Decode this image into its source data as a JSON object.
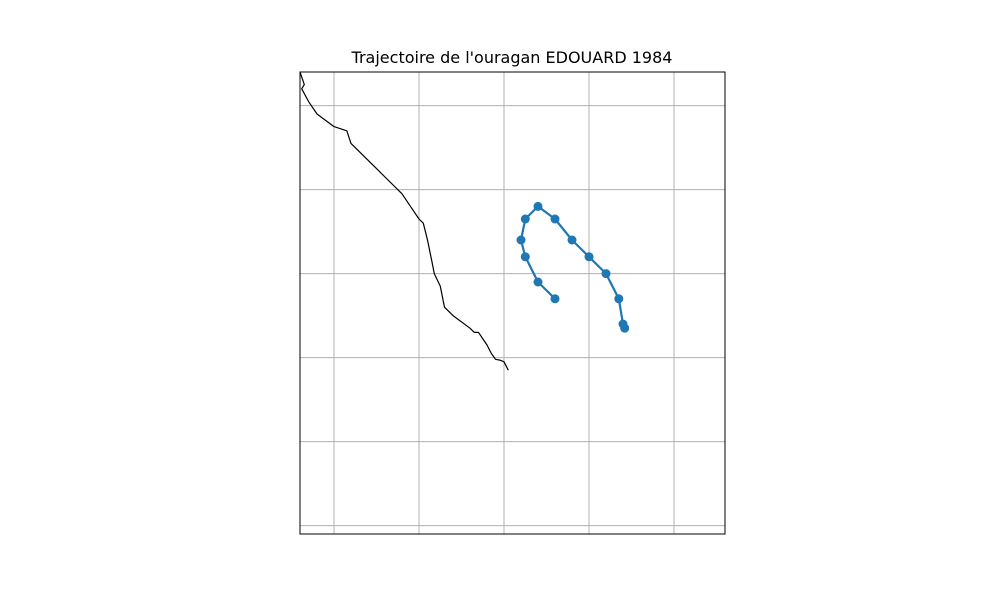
{
  "chart_data": {
    "type": "scatter",
    "title": "Trajectoire de l'ouragan EDOUARD 1984",
    "xlabel": "",
    "ylabel": "",
    "grid": true,
    "xlim": [
      -98.4,
      -93.4
    ],
    "ylim": [
      16.5,
      22.0
    ],
    "x_gridlines": [
      -98.0,
      -97.0,
      -96.0,
      -95.0,
      -94.0
    ],
    "y_gridlines": [
      16.6,
      17.6,
      18.6,
      19.6,
      20.6,
      21.6
    ],
    "colors": {
      "track": "#1f77b4",
      "coast": "#000000",
      "grid": "#b0b0b0"
    },
    "series": [
      {
        "lon": [
          -95.4,
          -95.6,
          -95.75,
          -95.8,
          -95.75,
          -95.6,
          -95.4,
          -95.2,
          -95.0,
          -94.8,
          -94.65,
          -94.6,
          -94.58
        ],
        "lat": [
          19.3,
          19.5,
          19.8,
          20.0,
          20.25,
          20.4,
          20.25,
          20.0,
          19.8,
          19.6,
          19.3,
          19.0,
          18.95
        ]
      }
    ],
    "coastline": {
      "lon": [
        -98.4,
        -98.35,
        -98.38,
        -98.3,
        -98.2,
        -98.0,
        -97.85,
        -97.8,
        -97.7,
        -97.55,
        -97.5,
        -97.4,
        -97.2,
        -97.1,
        -97.0,
        -96.95,
        -96.9,
        -96.85,
        -96.82,
        -96.75,
        -96.72,
        -96.7,
        -96.6,
        -96.4,
        -96.35,
        -96.3,
        -96.2,
        -96.15,
        -96.1,
        -96.05,
        -96.0,
        -95.95
      ],
      "lat": [
        22.0,
        21.85,
        21.8,
        21.65,
        21.5,
        21.35,
        21.3,
        21.15,
        21.05,
        20.9,
        20.85,
        20.75,
        20.55,
        20.4,
        20.25,
        20.2,
        20.0,
        19.75,
        19.6,
        19.45,
        19.3,
        19.2,
        19.1,
        18.95,
        18.9,
        18.9,
        18.75,
        18.65,
        18.58,
        18.57,
        18.55,
        18.45
      ]
    }
  }
}
